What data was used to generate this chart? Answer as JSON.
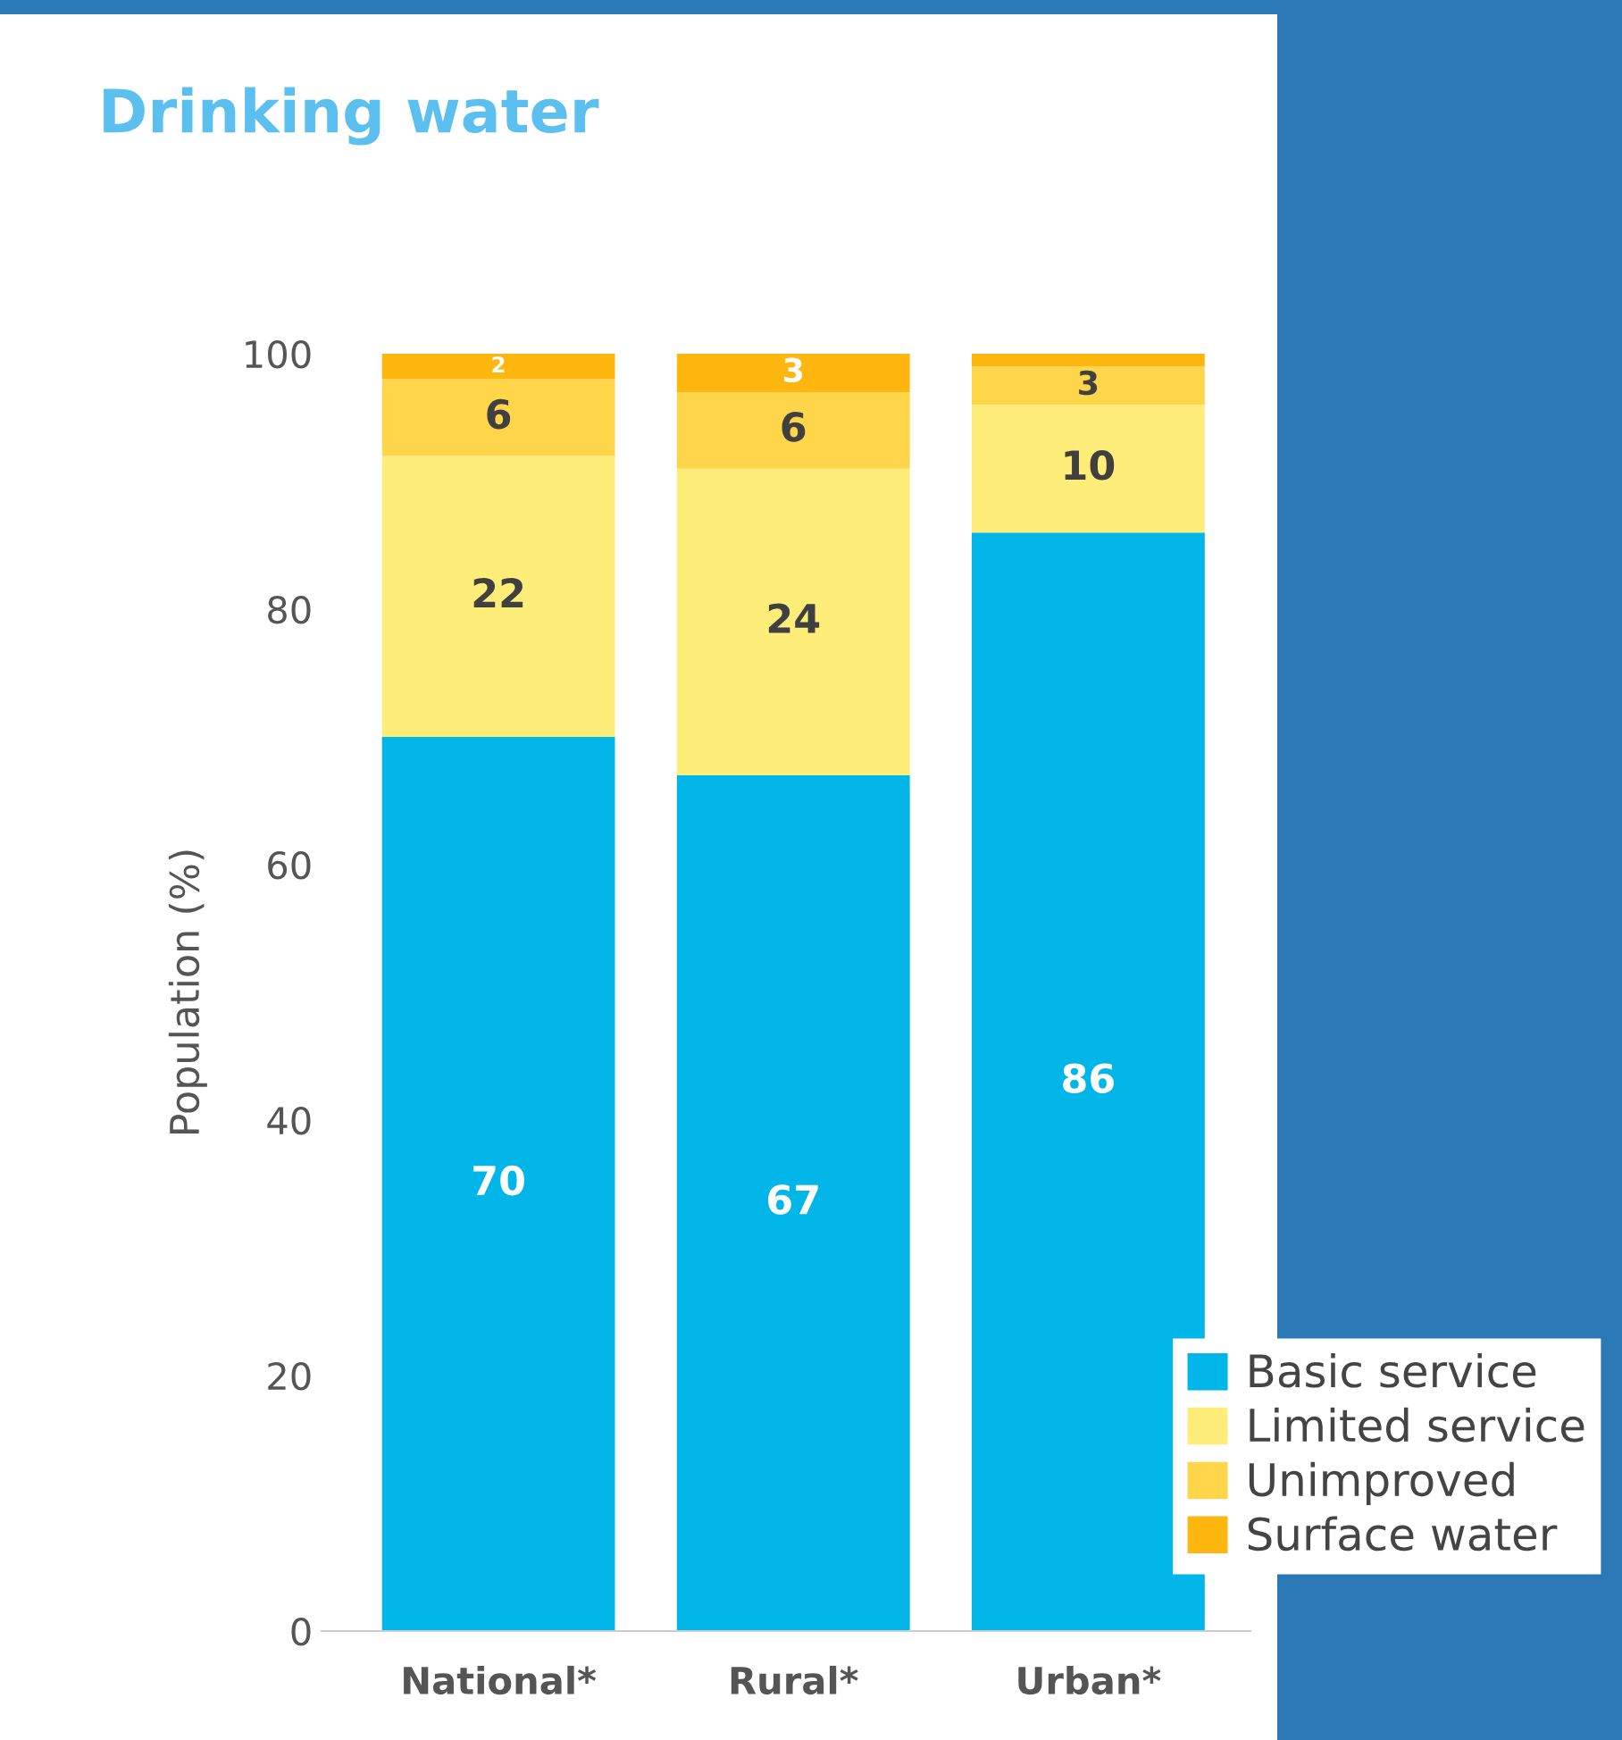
{
  "chart_data": {
    "type": "bar",
    "title": "Drinking water",
    "ylabel": "Population (%)",
    "stacked": true,
    "categories": [
      "National*",
      "Rural*",
      "Urban*"
    ],
    "series": [
      {
        "name": "Basic service",
        "color": "#00b5e8",
        "values": [
          70,
          67,
          86
        ],
        "value_labels": [
          "70",
          "67",
          "86"
        ]
      },
      {
        "name": "Limited service",
        "color": "#ffed79",
        "values": [
          22,
          24,
          10
        ],
        "value_labels": [
          "22",
          "24",
          "10"
        ]
      },
      {
        "name": "Unimproved",
        "color": "#ffd54a",
        "values": [
          6,
          6,
          3
        ],
        "value_labels": [
          "6",
          "6",
          "3"
        ]
      },
      {
        "name": "Surface water",
        "color": "#ffb60f",
        "values": [
          2,
          3,
          1
        ],
        "value_labels": [
          "2",
          "3",
          null
        ]
      }
    ],
    "ylim": [
      0,
      100
    ],
    "yticks": [
      0,
      20,
      40,
      60,
      80,
      100
    ],
    "grid": false,
    "legend": "bottom right"
  }
}
